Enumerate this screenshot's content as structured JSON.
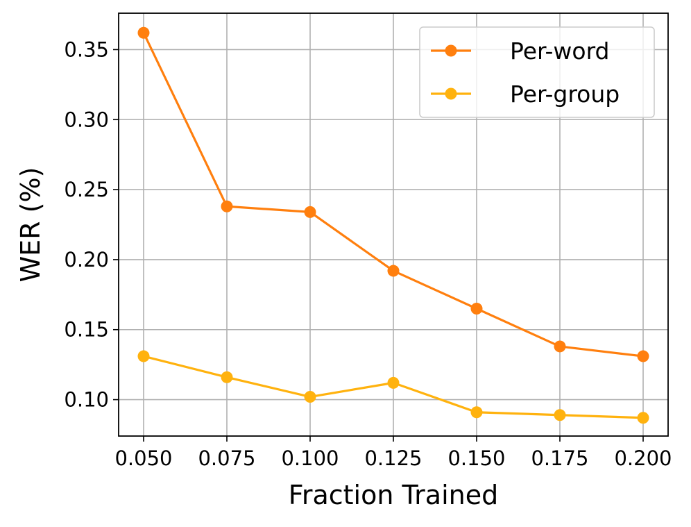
{
  "chart_data": {
    "type": "line",
    "title": "",
    "xlabel": "Fraction Trained",
    "ylabel": "WER (%)",
    "x": [
      0.05,
      0.075,
      0.1,
      0.125,
      0.15,
      0.175,
      0.2
    ],
    "x_tick_labels": [
      "0.050",
      "0.075",
      "0.100",
      "0.125",
      "0.150",
      "0.175",
      "0.200"
    ],
    "y_ticks": [
      0.1,
      0.15,
      0.2,
      0.25,
      0.3,
      0.35
    ],
    "y_tick_labels": [
      "0.10",
      "0.15",
      "0.20",
      "0.25",
      "0.30",
      "0.35"
    ],
    "xlim": [
      0.0425,
      0.2075
    ],
    "ylim": [
      0.074,
      0.376
    ],
    "grid": true,
    "legend_position": "top-right",
    "series": [
      {
        "name": "Per-word",
        "color": "#ff7f0e",
        "marker": "circle",
        "values": [
          0.362,
          0.238,
          0.234,
          0.192,
          0.165,
          0.138,
          0.131
        ]
      },
      {
        "name": "Per-group",
        "color": "#ffb20e",
        "marker": "circle",
        "values": [
          0.131,
          0.116,
          0.102,
          0.112,
          0.091,
          0.089,
          0.087
        ]
      }
    ]
  }
}
